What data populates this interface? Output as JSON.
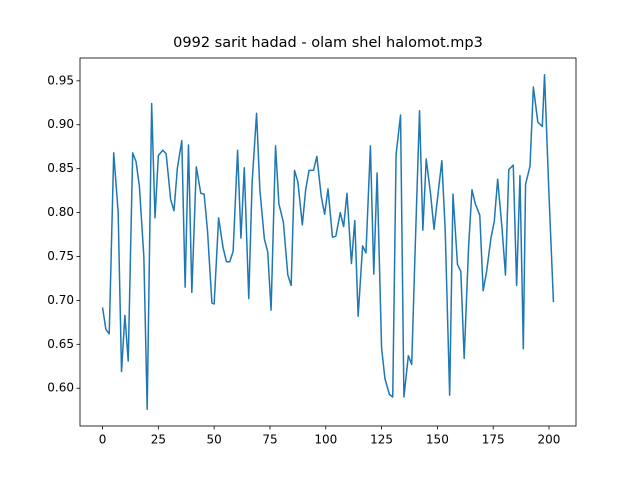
{
  "chart_data": {
    "type": "line",
    "title": "0992 sarit hadad - olam shel halomot.mp3",
    "x": [
      0,
      1.5,
      3,
      5,
      7,
      8.5,
      10,
      11.5,
      13.5,
      15,
      16.5,
      18.5,
      20,
      22,
      23.5,
      25,
      27,
      28.5,
      30.5,
      32,
      33.5,
      35.5,
      37,
      38.5,
      40,
      42,
      44,
      45.5,
      47,
      49,
      50,
      52,
      54,
      55.5,
      57,
      58.5,
      60.5,
      62,
      63.5,
      65.5,
      67,
      69,
      70.5,
      72.5,
      74,
      75.5,
      77.5,
      79,
      81,
      83,
      84.5,
      86,
      87.5,
      89.5,
      91,
      92.5,
      94.5,
      96,
      98,
      99.5,
      101,
      103,
      104.5,
      106.5,
      108,
      109.5,
      111.5,
      113,
      114.5,
      116.5,
      118,
      120,
      121.5,
      123,
      125,
      126.5,
      128.5,
      130,
      131.5,
      133.5,
      135,
      137,
      138.5,
      140,
      142,
      143.5,
      145,
      147,
      148.5,
      150.5,
      152,
      153.5,
      155.5,
      157,
      159,
      160.5,
      162,
      164,
      165.5,
      167,
      169,
      170.5,
      172,
      174,
      175.5,
      177,
      179,
      180.5,
      182,
      184,
      185.5,
      187,
      188.5,
      189.5,
      191.5,
      193,
      195,
      197,
      198,
      200,
      202
    ],
    "series": [
      {
        "color": "#1f77b4",
        "values": [
          0.692,
          0.667,
          0.662,
          0.868,
          0.8,
          0.619,
          0.683,
          0.631,
          0.868,
          0.858,
          0.83,
          0.75,
          0.576,
          0.924,
          0.794,
          0.865,
          0.871,
          0.867,
          0.815,
          0.802,
          0.85,
          0.882,
          0.715,
          0.877,
          0.709,
          0.852,
          0.822,
          0.821,
          0.78,
          0.697,
          0.696,
          0.794,
          0.76,
          0.744,
          0.744,
          0.756,
          0.871,
          0.771,
          0.851,
          0.702,
          0.834,
          0.913,
          0.825,
          0.77,
          0.755,
          0.689,
          0.876,
          0.81,
          0.789,
          0.729,
          0.717,
          0.848,
          0.835,
          0.786,
          0.826,
          0.848,
          0.848,
          0.864,
          0.818,
          0.798,
          0.827,
          0.772,
          0.773,
          0.8,
          0.784,
          0.822,
          0.742,
          0.791,
          0.682,
          0.762,
          0.754,
          0.876,
          0.73,
          0.845,
          0.646,
          0.611,
          0.593,
          0.59,
          0.866,
          0.911,
          0.59,
          0.637,
          0.627,
          0.755,
          0.916,
          0.78,
          0.861,
          0.82,
          0.781,
          0.826,
          0.859,
          0.78,
          0.592,
          0.821,
          0.741,
          0.733,
          0.634,
          0.762,
          0.826,
          0.81,
          0.797,
          0.711,
          0.732,
          0.771,
          0.79,
          0.838,
          0.781,
          0.729,
          0.849,
          0.854,
          0.717,
          0.842,
          0.645,
          0.832,
          0.853,
          0.943,
          0.903,
          0.898,
          0.957,
          0.82,
          0.698
        ]
      }
    ],
    "xlim": [
      -10.1,
      212.1
    ],
    "ylim": [
      0.557,
      0.976
    ],
    "xticks": [
      0,
      25,
      50,
      75,
      100,
      125,
      150,
      175,
      200
    ],
    "yticks": [
      {
        "value": 0.6,
        "label": "0.60"
      },
      {
        "value": 0.65,
        "label": "0.65"
      },
      {
        "value": 0.7,
        "label": "0.70"
      },
      {
        "value": 0.75,
        "label": "0.75"
      },
      {
        "value": 0.8,
        "label": "0.80"
      },
      {
        "value": 0.85,
        "label": "0.85"
      },
      {
        "value": 0.9,
        "label": "0.90"
      },
      {
        "value": 0.95,
        "label": "0.95"
      }
    ],
    "grid": false
  }
}
